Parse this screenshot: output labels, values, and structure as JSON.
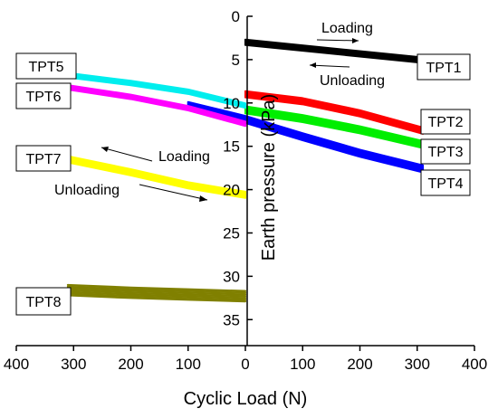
{
  "chart_data": {
    "type": "line",
    "xlabel": "Cyclic Load (N)",
    "ylabel": "Earth pressure (kPa)",
    "xlim": [
      -400,
      400
    ],
    "ylim": [
      38,
      0
    ],
    "x_ticks": [
      "400",
      "300",
      "200",
      "100",
      "0",
      "100",
      "200",
      "300",
      "400"
    ],
    "y_ticks": [
      "0",
      "5",
      "10",
      "15",
      "20",
      "25",
      "30",
      "35"
    ],
    "series": [
      {
        "name": "TPT1",
        "color": "#000000",
        "x": [
          0,
          300
        ],
        "y": [
          3.0,
          5.0
        ],
        "loop_width": 0.6
      },
      {
        "name": "TPT2",
        "color": "#ff0000",
        "x": [
          0,
          100,
          200,
          310
        ],
        "y": [
          9.0,
          9.8,
          11.2,
          13.2
        ],
        "loop_width": 0.7
      },
      {
        "name": "TPT3",
        "color": "#00ee00",
        "x": [
          0,
          100,
          200,
          310
        ],
        "y": [
          10.8,
          11.8,
          13.1,
          14.8
        ],
        "loop_width": 0.8
      },
      {
        "name": "TPT4",
        "color": "#0000ff",
        "x": [
          -100,
          0,
          100,
          200,
          310
        ],
        "y": [
          10.3,
          11.9,
          13.9,
          15.8,
          17.6
        ],
        "loop_width": 0.8
      },
      {
        "name": "TPT5",
        "color": "#00eeee",
        "x": [
          -310,
          -200,
          -100,
          0
        ],
        "y": [
          6.8,
          7.7,
          8.7,
          10.3
        ],
        "loop_width": 0.5
      },
      {
        "name": "TPT6",
        "color": "#ff00ff",
        "x": [
          -310,
          -200,
          -100,
          0
        ],
        "y": [
          8.2,
          9.3,
          10.6,
          12.4
        ],
        "loop_width": 0.5
      },
      {
        "name": "TPT7",
        "color": "#ffff00",
        "x": [
          -310,
          -200,
          -100,
          0
        ],
        "y": [
          16.5,
          18.0,
          19.5,
          20.6
        ],
        "loop_width": 0.7
      },
      {
        "name": "TPT8",
        "color": "#808000",
        "x": [
          -310,
          -200,
          -100,
          0
        ],
        "y": [
          31.6,
          31.9,
          32.1,
          32.3
        ],
        "loop_width": 1.2
      }
    ],
    "annotations": [
      {
        "text": "Loading",
        "side": "top-right"
      },
      {
        "text": "Unloading",
        "side": "top-right"
      },
      {
        "text": "Loading",
        "side": "middle-left"
      },
      {
        "text": "Unloading",
        "side": "middle-left"
      }
    ]
  }
}
